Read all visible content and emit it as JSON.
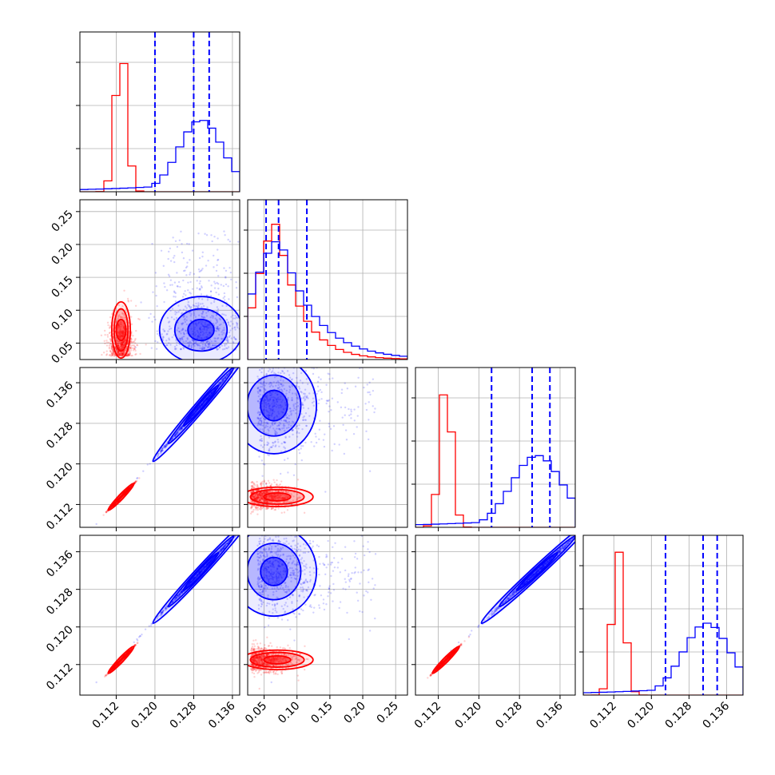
{
  "chart_data": {
    "type": "corner",
    "description_style": "corner plot: 1D histograms on diagonal, 2D density contours with scatter below",
    "variables": 4,
    "series": [
      {
        "color": "#ff0000"
      },
      {
        "color": "#0000ff"
      }
    ],
    "axes": [
      {
        "range": [
          0.1045,
          0.1375
        ],
        "ticks": [
          0.112,
          0.12,
          0.128,
          0.136
        ],
        "tick_labels": [
          "0.112",
          "0.120",
          "0.128",
          "0.136"
        ]
      },
      {
        "range": [
          0.025,
          0.268
        ],
        "ticks": [
          0.05,
          0.1,
          0.15,
          0.2,
          0.25
        ],
        "tick_labels": [
          "0.05",
          "0.10",
          "0.15",
          "0.20",
          "0.25"
        ]
      },
      {
        "range": [
          0.1075,
          0.139
        ],
        "ticks": [
          0.112,
          0.12,
          0.128,
          0.136
        ],
        "tick_labels": [
          "0.112",
          "0.120",
          "0.128",
          "0.136"
        ]
      },
      {
        "range": [
          0.1055,
          0.1395
        ],
        "ticks": [
          0.112,
          0.12,
          0.128,
          0.136
        ],
        "tick_labels": [
          "0.112",
          "0.120",
          "0.128",
          "0.136"
        ]
      }
    ],
    "quantile_lines": [
      [
        0.12,
        0.128,
        0.1312
      ],
      [
        0.053,
        0.072,
        0.115
      ],
      [
        0.1225,
        0.1305,
        0.134
      ],
      [
        0.123,
        0.131,
        0.134
      ]
    ],
    "distributions": {
      "red": {
        "means": [
          0.113,
          0.07,
          0.1135,
          0.113
        ],
        "sds": [
          0.0012,
          0.028,
          0.0012,
          0.0013
        ]
      },
      "blue": {
        "means": [
          0.1295,
          0.075,
          0.1315,
          0.1318
        ],
        "sds": [
          0.0045,
          0.04,
          0.005,
          0.005
        ]
      }
    },
    "grid": true,
    "legend": "none"
  }
}
